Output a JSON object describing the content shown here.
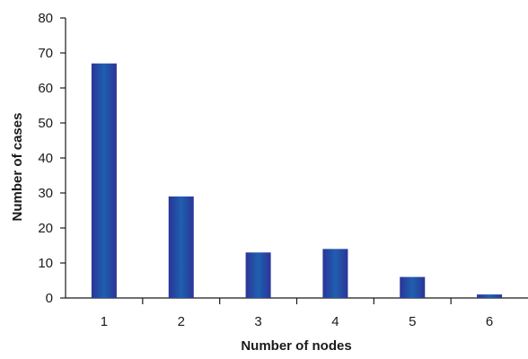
{
  "chart_data": {
    "type": "bar",
    "title": "",
    "xlabel": "Number of nodes",
    "ylabel": "Number of cases",
    "categories": [
      "1",
      "2",
      "3",
      "4",
      "5",
      "6"
    ],
    "values": [
      67,
      29,
      13,
      14,
      6,
      1
    ],
    "ylim": [
      0,
      80
    ],
    "yticks": [
      "0",
      "10",
      "20",
      "30",
      "40",
      "50",
      "60",
      "70",
      "80"
    ],
    "grid": false,
    "legend": "none"
  },
  "colors": {
    "bar": "#2b3597",
    "bar_highlight": "#1f5fb0",
    "axis": "#1a1a1a"
  }
}
